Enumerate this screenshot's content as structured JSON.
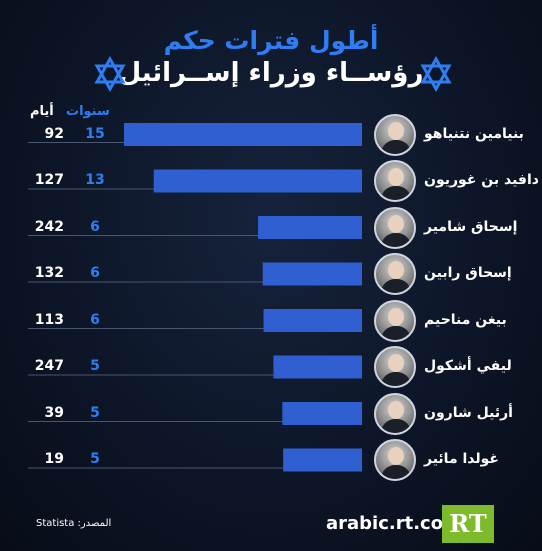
{
  "title_line1": "أطول فترات حكم",
  "title_line2": "رؤســاء وزراء إســرائيل",
  "icons": {
    "left": "star-of-david-icon",
    "right": "star-of-david-icon"
  },
  "column_headers": {
    "years": "سنوات",
    "days": "أيام"
  },
  "source": "المصدر: Statista",
  "website": "arabic.rt.com",
  "logo_text": "RT",
  "colors": {
    "bar": "#2f5fd0",
    "accent": "#2f7df2",
    "logo": "#7dbb2a"
  },
  "chart_data": {
    "type": "bar",
    "orientation": "horizontal",
    "categories": [
      "بنيامين نتنياهو",
      "دافيد بن غوريون",
      "إسحاق شامير",
      "إسحاق رابين",
      "بيغن مناحيم",
      "ليفي أشكول",
      "أرئيل شارون",
      "غولدا مائير"
    ],
    "series": [
      {
        "name": "سنوات",
        "values": [
          15,
          13,
          6,
          6,
          6,
          5,
          5,
          5
        ]
      },
      {
        "name": "أيام",
        "values": [
          92,
          127,
          242,
          132,
          113,
          247,
          39,
          19
        ]
      }
    ],
    "xlabel": "",
    "ylabel": "",
    "grid": false,
    "legend": "top-left"
  }
}
